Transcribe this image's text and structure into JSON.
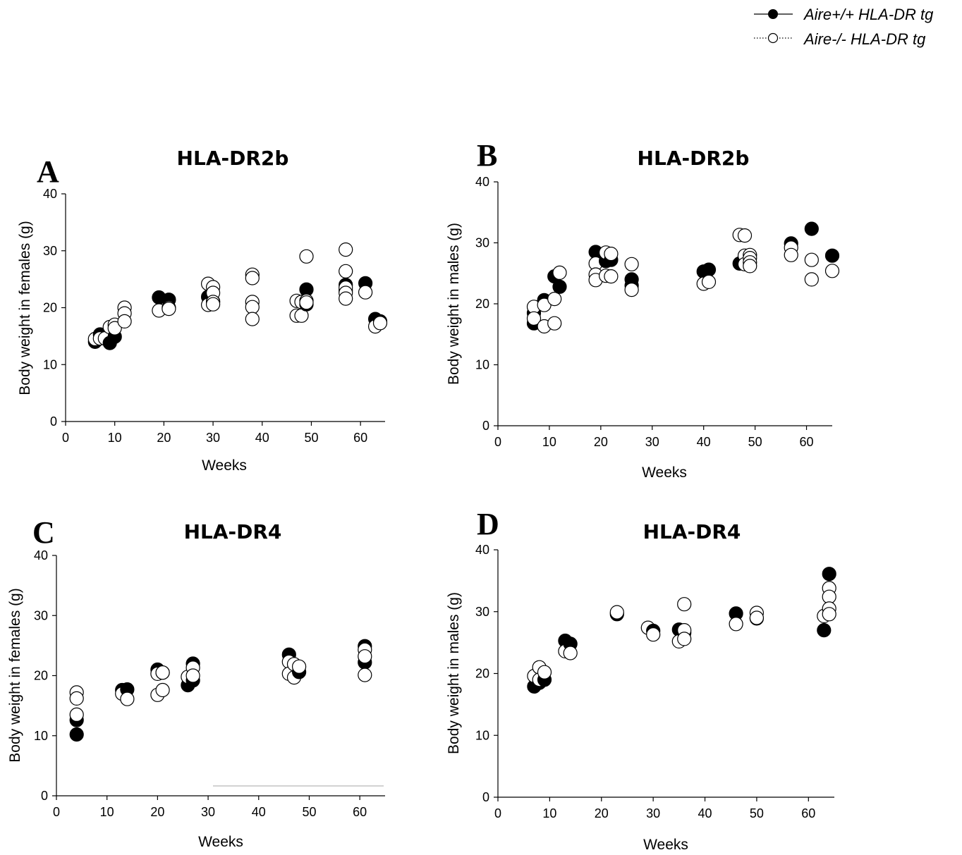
{
  "legend": {
    "items": [
      {
        "label": "Aire+/+ HLA-DR tg",
        "marker": "filled-circle",
        "line": "solid"
      },
      {
        "label": "Aire-/- HLA-DR tg",
        "marker": "open-circle",
        "line": "dotted"
      }
    ]
  },
  "chart_data": [
    {
      "type": "scatter",
      "panel": "A",
      "title": "HLA-DR2b",
      "xlabel": "Weeks",
      "ylabel": "Body weight in females (g)",
      "xlim": [
        0,
        65
      ],
      "ylim": [
        0,
        40
      ],
      "xticks": [
        0,
        10,
        20,
        30,
        40,
        50,
        60
      ],
      "yticks": [
        0,
        10,
        20,
        30,
        40
      ],
      "series": [
        {
          "name": "Aire+/+ HLA-DR tg",
          "points": [
            [
              6,
              14.0
            ],
            [
              7,
              15.3
            ],
            [
              9,
              13.8
            ],
            [
              10,
              14.9
            ],
            [
              19,
              21.8
            ],
            [
              21,
              21.4
            ],
            [
              29,
              21.9
            ],
            [
              30,
              21.1
            ],
            [
              49,
              23.2
            ],
            [
              49,
              20.6
            ],
            [
              57,
              24.0
            ],
            [
              57,
              23.0
            ],
            [
              61,
              24.3
            ],
            [
              63,
              18.0
            ],
            [
              64,
              17.6
            ]
          ]
        },
        {
          "name": "Aire-/- HLA-DR tg",
          "points": [
            [
              6,
              14.5
            ],
            [
              7,
              14.6
            ],
            [
              8,
              14.6
            ],
            [
              9,
              16.6
            ],
            [
              10,
              17.0
            ],
            [
              10,
              16.4
            ],
            [
              12,
              20.0
            ],
            [
              12,
              19.0
            ],
            [
              12,
              17.6
            ],
            [
              19,
              19.5
            ],
            [
              21,
              20.0
            ],
            [
              21,
              19.8
            ],
            [
              29,
              24.2
            ],
            [
              29,
              20.5
            ],
            [
              30,
              23.6
            ],
            [
              30,
              22.6
            ],
            [
              30,
              21.0
            ],
            [
              30,
              20.6
            ],
            [
              38,
              25.8
            ],
            [
              38,
              25.2
            ],
            [
              38,
              21.0
            ],
            [
              38,
              20.1
            ],
            [
              38,
              18.0
            ],
            [
              47,
              21.2
            ],
            [
              47,
              18.6
            ],
            [
              48,
              21.0
            ],
            [
              48,
              18.6
            ],
            [
              49,
              29.0
            ],
            [
              49,
              21.2
            ],
            [
              49,
              20.9
            ],
            [
              57,
              30.2
            ],
            [
              57,
              26.4
            ],
            [
              57,
              23.5
            ],
            [
              57,
              22.6
            ],
            [
              57,
              21.6
            ],
            [
              61,
              22.7
            ],
            [
              63,
              16.7
            ],
            [
              64,
              17.3
            ]
          ]
        }
      ]
    },
    {
      "type": "scatter",
      "panel": "B",
      "title": "HLA-DR2b",
      "xlabel": "Weeks",
      "ylabel": "Body weight in males (g)",
      "xlim": [
        0,
        65
      ],
      "ylim": [
        0,
        40
      ],
      "xticks": [
        0,
        10,
        20,
        30,
        40,
        50,
        60
      ],
      "yticks": [
        0,
        10,
        20,
        30,
        40
      ],
      "series": [
        {
          "name": "Aire+/+ HLA-DR tg",
          "points": [
            [
              7,
              16.8
            ],
            [
              7,
              18.5
            ],
            [
              9,
              20.6
            ],
            [
              11,
              24.5
            ],
            [
              12,
              22.8
            ],
            [
              19,
              28.5
            ],
            [
              21,
              27.0
            ],
            [
              22,
              27.2
            ],
            [
              26,
              24.0
            ],
            [
              26,
              23.0
            ],
            [
              40,
              25.3
            ],
            [
              41,
              25.6
            ],
            [
              47,
              26.6
            ],
            [
              48,
              26.9
            ],
            [
              57,
              29.9
            ],
            [
              61,
              32.3
            ],
            [
              65,
              27.9
            ]
          ]
        },
        {
          "name": "Aire-/- HLA-DR tg",
          "points": [
            [
              7,
              19.5
            ],
            [
              7,
              17.6
            ],
            [
              9,
              19.8
            ],
            [
              9,
              16.3
            ],
            [
              11,
              20.8
            ],
            [
              11,
              16.8
            ],
            [
              12,
              25.1
            ],
            [
              19,
              26.6
            ],
            [
              19,
              24.8
            ],
            [
              19,
              23.9
            ],
            [
              21,
              28.4
            ],
            [
              21,
              24.6
            ],
            [
              22,
              28.2
            ],
            [
              22,
              24.5
            ],
            [
              26,
              26.5
            ],
            [
              26,
              22.3
            ],
            [
              40,
              23.3
            ],
            [
              41,
              23.6
            ],
            [
              47,
              31.3
            ],
            [
              48,
              31.2
            ],
            [
              48,
              27.9
            ],
            [
              48,
              26.5
            ],
            [
              49,
              28.0
            ],
            [
              49,
              27.5
            ],
            [
              49,
              26.8
            ],
            [
              49,
              26.2
            ],
            [
              57,
              29.2
            ],
            [
              57,
              28.0
            ],
            [
              61,
              27.2
            ],
            [
              61,
              24.0
            ],
            [
              65,
              25.4
            ]
          ]
        }
      ]
    },
    {
      "type": "scatter",
      "panel": "C",
      "title": "HLA-DR4",
      "xlabel": "Weeks",
      "ylabel": "Body weight in females (g)",
      "xlim": [
        0,
        65
      ],
      "ylim": [
        0,
        40
      ],
      "xticks": [
        0,
        10,
        20,
        30,
        40,
        50,
        60
      ],
      "yticks": [
        0,
        10,
        20,
        30,
        40
      ],
      "series": [
        {
          "name": "Aire+/+ HLA-DR tg",
          "points": [
            [
              4,
              10.2
            ],
            [
              4,
              12.6
            ],
            [
              13,
              17.6
            ],
            [
              14,
              17.7
            ],
            [
              20,
              21.0
            ],
            [
              21,
              20.5
            ],
            [
              26,
              18.4
            ],
            [
              27,
              22.0
            ],
            [
              27,
              19.2
            ],
            [
              46,
              23.5
            ],
            [
              48,
              20.6
            ],
            [
              61,
              24.9
            ],
            [
              61,
              22.2
            ]
          ]
        },
        {
          "name": "Aire-/- HLA-DR tg",
          "points": [
            [
              4,
              17.2
            ],
            [
              4,
              16.2
            ],
            [
              4,
              13.5
            ],
            [
              13,
              17.0
            ],
            [
              14,
              16.1
            ],
            [
              20,
              20.3
            ],
            [
              20,
              16.8
            ],
            [
              21,
              20.5
            ],
            [
              21,
              17.6
            ],
            [
              26,
              19.8
            ],
            [
              27,
              21.3
            ],
            [
              27,
              20.0
            ],
            [
              46,
              22.3
            ],
            [
              46,
              20.3
            ],
            [
              47,
              21.9
            ],
            [
              47,
              19.7
            ],
            [
              48,
              21.5
            ],
            [
              61,
              24.3
            ],
            [
              61,
              23.2
            ],
            [
              61,
              20.1
            ]
          ]
        }
      ]
    },
    {
      "type": "scatter",
      "panel": "D",
      "title": "HLA-DR4",
      "xlabel": "Weeks",
      "ylabel": "Body weight in males (g)",
      "xlim": [
        0,
        65
      ],
      "ylim": [
        0,
        40
      ],
      "xticks": [
        0,
        10,
        20,
        30,
        40,
        50,
        60
      ],
      "yticks": [
        0,
        10,
        20,
        30,
        40
      ],
      "series": [
        {
          "name": "Aire+/+ HLA-DR tg",
          "points": [
            [
              7,
              17.9
            ],
            [
              8,
              18.5
            ],
            [
              9,
              19.0
            ],
            [
              13,
              25.3
            ],
            [
              14,
              24.8
            ],
            [
              23,
              29.6
            ],
            [
              30,
              26.9
            ],
            [
              35,
              27.1
            ],
            [
              36,
              26.6
            ],
            [
              46,
              29.7
            ],
            [
              50,
              28.9
            ],
            [
              63,
              27.0
            ],
            [
              64,
              36.1
            ]
          ]
        },
        {
          "name": "Aire-/- HLA-DR tg",
          "points": [
            [
              7,
              19.6
            ],
            [
              8,
              21.0
            ],
            [
              8,
              19.0
            ],
            [
              9,
              20.2
            ],
            [
              13,
              23.6
            ],
            [
              14,
              23.3
            ],
            [
              23,
              29.9
            ],
            [
              29,
              27.4
            ],
            [
              30,
              26.3
            ],
            [
              35,
              25.2
            ],
            [
              36,
              31.2
            ],
            [
              36,
              27.0
            ],
            [
              36,
              25.6
            ],
            [
              46,
              28.0
            ],
            [
              50,
              29.8
            ],
            [
              50,
              29.0
            ],
            [
              63,
              29.3
            ],
            [
              64,
              33.8
            ],
            [
              64,
              32.4
            ],
            [
              64,
              30.5
            ],
            [
              64,
              29.6
            ]
          ]
        }
      ]
    }
  ]
}
